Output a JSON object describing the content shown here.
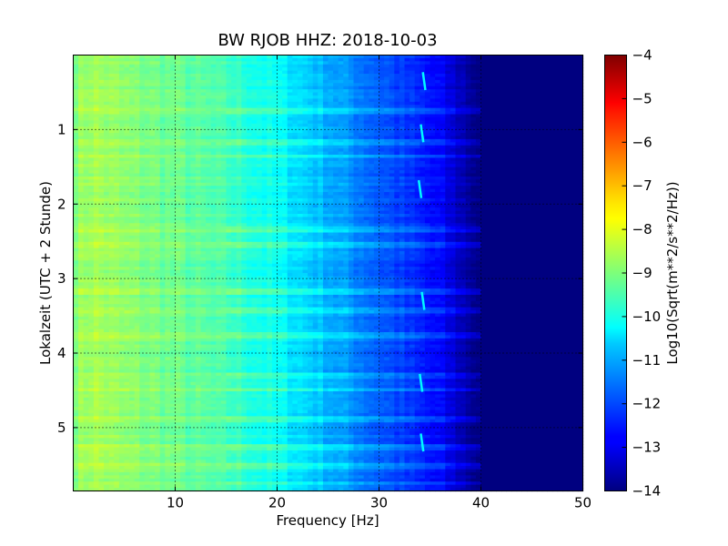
{
  "chart_data": {
    "type": "heatmap",
    "title": "BW RJOB HHZ: 2018-10-03",
    "xlabel": "Frequency [Hz]",
    "ylabel": "Lokalzeit (UTC + 2 Stunde)",
    "xlim": [
      0,
      50
    ],
    "ylim": [
      5.85,
      0
    ],
    "x_ticks": [
      10,
      20,
      30,
      40,
      50
    ],
    "y_ticks": [
      1,
      2,
      3,
      4,
      5
    ],
    "grid": true,
    "colormap": "jet",
    "colorbar": {
      "label": "Log10(Sqrt(m**2/s**2/Hz))",
      "range": [
        -14,
        -4
      ],
      "ticks": [
        -4,
        -5,
        -6,
        -7,
        -8,
        -9,
        -10,
        -11,
        -12,
        -13,
        -14
      ]
    },
    "frequency_profile_hz": [
      0,
      2,
      5,
      10,
      15,
      20,
      25,
      30,
      33,
      36,
      38,
      40,
      50
    ],
    "frequency_profile_level": [
      -8.9,
      -8.6,
      -8.9,
      -9.2,
      -9.6,
      -10.2,
      -11.0,
      -11.8,
      -12.3,
      -12.8,
      -13.4,
      -14,
      -14
    ],
    "horizontal_bands_hours": [
      0.74,
      1.16,
      1.36,
      2.34,
      2.55,
      3.18,
      3.42,
      3.75,
      4.3,
      4.5,
      4.9,
      5.26,
      5.52,
      5.74
    ],
    "tone_trace_hz": [
      34.3,
      34.1,
      33.9,
      34.2,
      34.0,
      34.1
    ],
    "tone_trace_hours": [
      0.35,
      1.05,
      1.8,
      3.3,
      4.4,
      5.2
    ]
  }
}
